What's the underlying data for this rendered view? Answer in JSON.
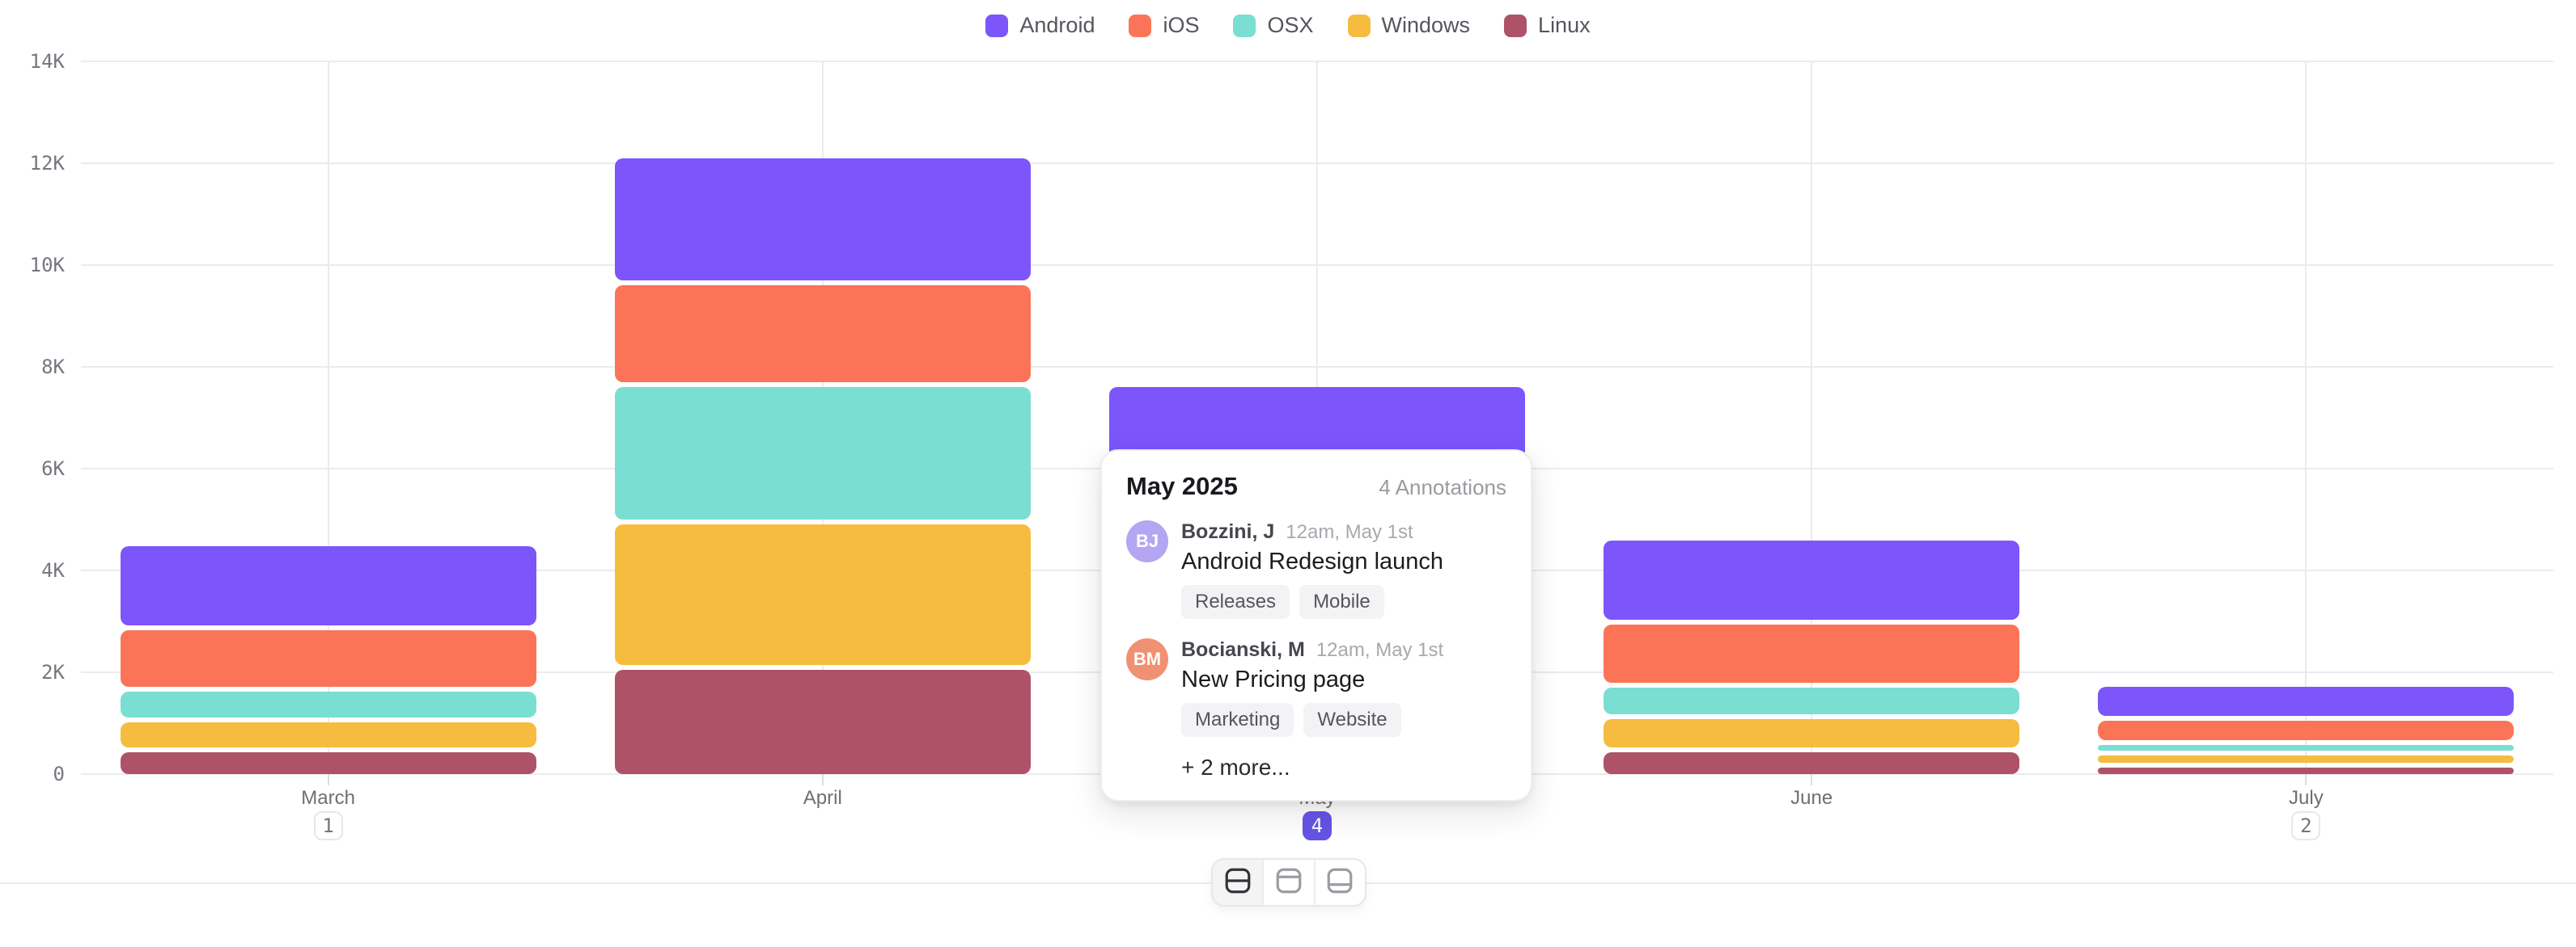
{
  "chart_data": {
    "type": "bar",
    "stacked": true,
    "title": "",
    "categories": [
      "March",
      "April",
      "May",
      "June",
      "July"
    ],
    "series": [
      {
        "name": "Android",
        "color": "#7C55FB",
        "values": [
          1600,
          2450,
          2100,
          1600,
          620
        ]
      },
      {
        "name": "iOS",
        "color": "#FC7457",
        "values": [
          1200,
          2000,
          1700,
          1250,
          470
        ]
      },
      {
        "name": "OSX",
        "color": "#7BDED2",
        "values": [
          600,
          2700,
          1500,
          620,
          210
        ]
      },
      {
        "name": "Windows",
        "color": "#F5BC40",
        "values": [
          600,
          2850,
          1400,
          640,
          230
        ]
      },
      {
        "name": "Linux",
        "color": "#AE5367",
        "values": [
          470,
          2100,
          900,
          480,
          180
        ]
      }
    ],
    "stack_order_bottom_to_top": [
      "Linux",
      "Windows",
      "OSX",
      "iOS",
      "Android"
    ],
    "ylim": [
      0,
      14000
    ],
    "y_tick_step": 2000,
    "y_tick_labels": [
      "0",
      "2K",
      "4K",
      "6K",
      "8K",
      "10K",
      "12K",
      "14K"
    ],
    "grid": "horizontal lines at each 2K; vertical line at each month center",
    "legend_position": "top-center",
    "annotation_counts": [
      1,
      null,
      4,
      null,
      2
    ],
    "active_month_index": 2
  },
  "popover": {
    "title": "May 2025",
    "count_label": "4 Annotations",
    "entries": [
      {
        "initials": "BJ",
        "avatar_color": "#B4A6F2",
        "name": "Bozzini, J",
        "timestamp": "12am, May 1st",
        "title": "Android Redesign launch",
        "tags": [
          "Releases",
          "Mobile"
        ]
      },
      {
        "initials": "BM",
        "avatar_color": "#F19173",
        "name": "Bocianski, M",
        "timestamp": "12am, May 1st",
        "title": "New Pricing page",
        "tags": [
          "Marketing",
          "Website"
        ]
      }
    ],
    "more_label": "+ 2 more..."
  },
  "toolbar": {
    "layouts": [
      {
        "name": "split-rows",
        "active": true
      },
      {
        "name": "header-top",
        "active": false
      },
      {
        "name": "footer-bottom",
        "active": false
      }
    ]
  },
  "colors": {
    "annotation_badge_active": "#6554E6",
    "grid": "#EBEBEE"
  }
}
